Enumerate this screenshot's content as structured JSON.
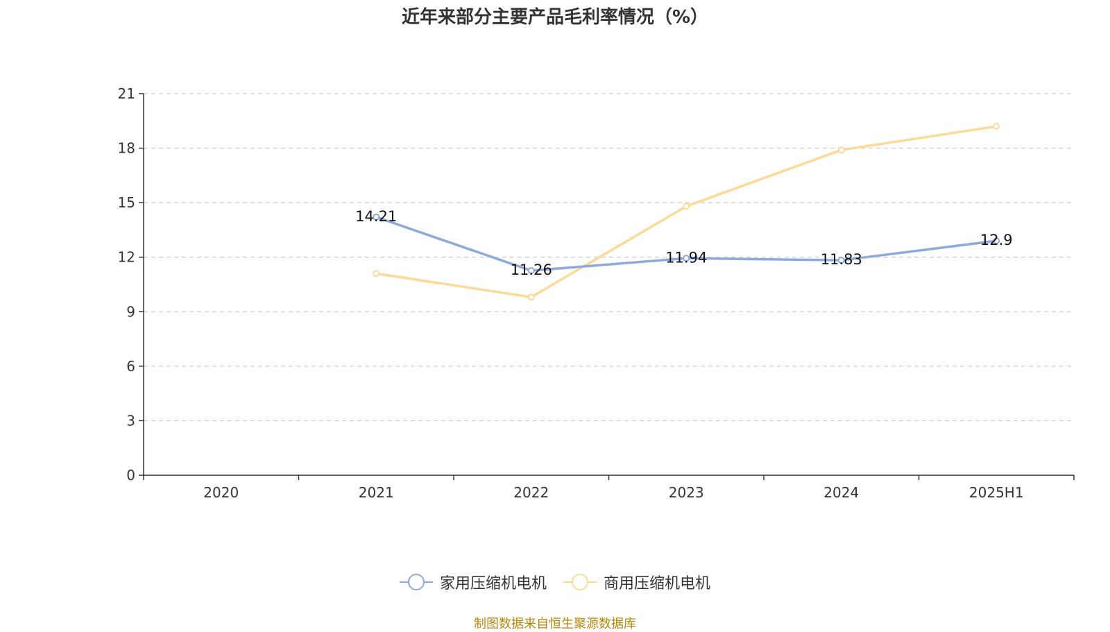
{
  "chart_data": {
    "type": "line",
    "title": "近年来部分主要产品毛利率情况（%）",
    "categories": [
      "2020",
      "2021",
      "2022",
      "2023",
      "2024",
      "2025H1"
    ],
    "ylim": [
      0,
      21
    ],
    "yticks": [
      0,
      3,
      6,
      9,
      12,
      15,
      18,
      21
    ],
    "grid": true,
    "legend_position": "bottom",
    "series": [
      {
        "name": "家用压缩机电机",
        "color": "#8eaadb",
        "values": [
          null,
          14.21,
          11.26,
          11.94,
          11.83,
          12.9
        ],
        "labels": [
          "",
          "14.21",
          "11.26",
          "11.94",
          "11.83",
          "12.9"
        ]
      },
      {
        "name": "商用压缩机电机",
        "color": "#fdd998",
        "values": [
          null,
          11.1,
          9.8,
          14.8,
          17.9,
          19.2
        ],
        "labels": [
          "",
          "",
          "",
          "",
          "",
          ""
        ]
      }
    ]
  },
  "source_note": "制图数据来自恒生聚源数据库"
}
